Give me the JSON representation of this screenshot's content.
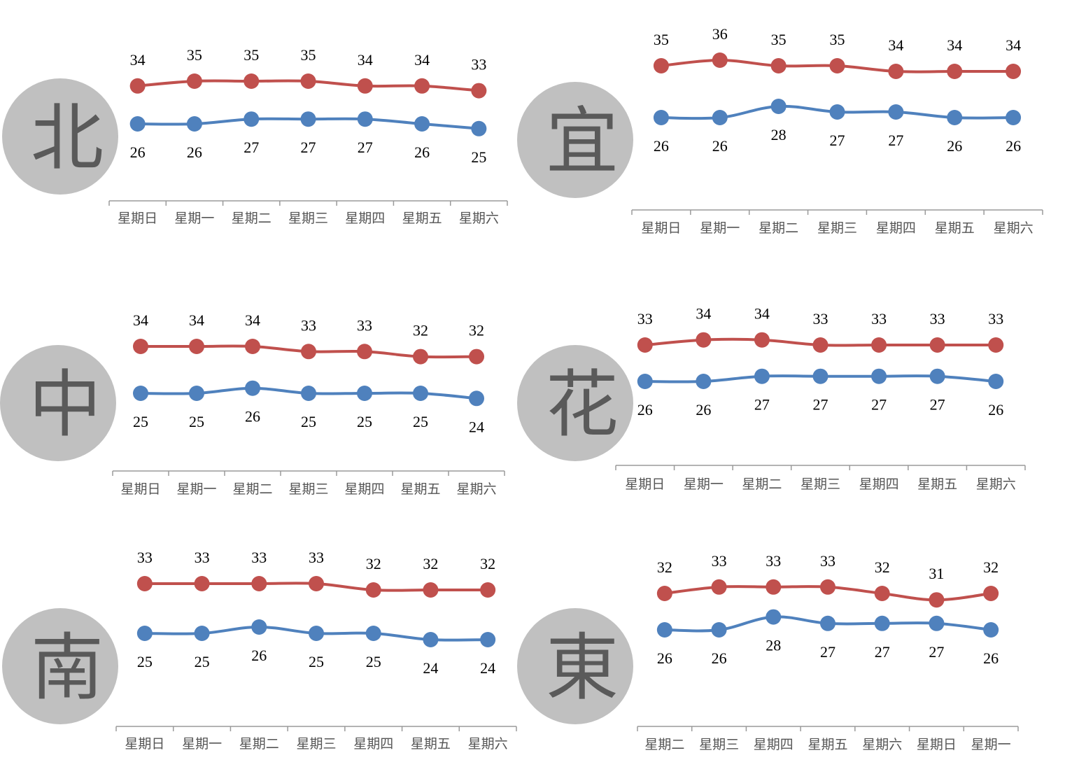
{
  "colors": {
    "high": "#c0504d",
    "low": "#4f81bd",
    "circle": "#c0c0c0",
    "axis": "#9a9a9a"
  },
  "chart_data": [
    {
      "type": "line",
      "region": "北",
      "categories": [
        "星期日",
        "星期一",
        "星期二",
        "星期三",
        "星期四",
        "星期五",
        "星期六"
      ],
      "series": [
        {
          "values": [
            34,
            35,
            35,
            35,
            34,
            34,
            33
          ]
        },
        {
          "values": [
            26,
            26,
            27,
            27,
            27,
            26,
            25
          ]
        }
      ]
    },
    {
      "type": "line",
      "region": "宜",
      "categories": [
        "星期日",
        "星期一",
        "星期二",
        "星期三",
        "星期四",
        "星期五",
        "星期六"
      ],
      "series": [
        {
          "values": [
            35,
            36,
            35,
            35,
            34,
            34,
            34
          ]
        },
        {
          "values": [
            26,
            26,
            28,
            27,
            27,
            26,
            26
          ]
        }
      ]
    },
    {
      "type": "line",
      "region": "中",
      "categories": [
        "星期日",
        "星期一",
        "星期二",
        "星期三",
        "星期四",
        "星期五",
        "星期六"
      ],
      "series": [
        {
          "values": [
            34,
            34,
            34,
            33,
            33,
            32,
            32
          ]
        },
        {
          "values": [
            25,
            25,
            26,
            25,
            25,
            25,
            24
          ]
        }
      ]
    },
    {
      "type": "line",
      "region": "花",
      "categories": [
        "星期日",
        "星期一",
        "星期二",
        "星期三",
        "星期四",
        "星期五",
        "星期六"
      ],
      "series": [
        {
          "values": [
            33,
            34,
            34,
            33,
            33,
            33,
            33
          ]
        },
        {
          "values": [
            26,
            26,
            27,
            27,
            27,
            27,
            26
          ]
        }
      ]
    },
    {
      "type": "line",
      "region": "南",
      "categories": [
        "星期日",
        "星期一",
        "星期二",
        "星期三",
        "星期四",
        "星期五",
        "星期六"
      ],
      "series": [
        {
          "values": [
            33,
            33,
            33,
            33,
            32,
            32,
            32
          ]
        },
        {
          "values": [
            25,
            25,
            26,
            25,
            25,
            24,
            24
          ]
        }
      ]
    },
    {
      "type": "line",
      "region": "東",
      "categories": [
        "星期二",
        "星期三",
        "星期四",
        "星期五",
        "星期六",
        "星期日",
        "星期一"
      ],
      "series": [
        {
          "values": [
            32,
            33,
            33,
            33,
            32,
            31,
            32
          ]
        },
        {
          "values": [
            26,
            26,
            28,
            27,
            27,
            27,
            26
          ]
        }
      ]
    }
  ]
}
